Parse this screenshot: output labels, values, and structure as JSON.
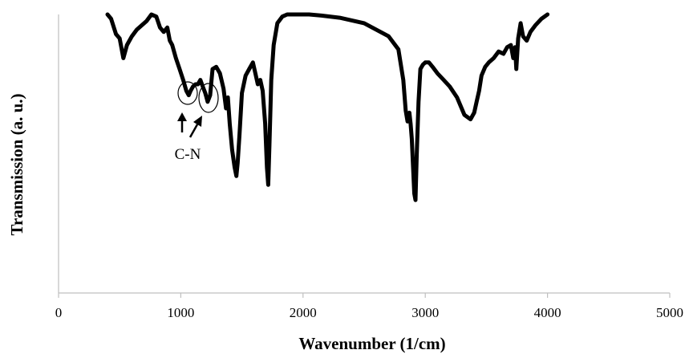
{
  "chart_data": {
    "type": "line",
    "title": "",
    "xlabel": "Wavenumber (1/cm)",
    "ylabel": "Transmission (a. u.)",
    "xlim": [
      0,
      5000
    ],
    "ylim": [
      0,
      100
    ],
    "xticks": [
      "0",
      "1000",
      "2000",
      "3000",
      "4000",
      "5000"
    ],
    "grid": false,
    "legend": "none",
    "line_color": "#000000",
    "series": [
      {
        "x": [
          400,
          430,
          470,
          500,
          530,
          560,
          600,
          640,
          680,
          720,
          760,
          800,
          830,
          860,
          890,
          910,
          930,
          960,
          990,
          1020,
          1045,
          1065,
          1080,
          1100,
          1120,
          1140,
          1160,
          1180,
          1200,
          1220,
          1240,
          1260,
          1290,
          1320,
          1350,
          1370,
          1385,
          1400,
          1420,
          1440,
          1455,
          1465,
          1480,
          1500,
          1530,
          1560,
          1590,
          1610,
          1630,
          1650,
          1670,
          1690,
          1705,
          1715,
          1725,
          1740,
          1760,
          1790,
          1830,
          1870,
          1920,
          1980,
          2050,
          2150,
          2300,
          2500,
          2700,
          2780,
          2820,
          2840,
          2855,
          2870,
          2880,
          2890,
          2900,
          2910,
          2920,
          2930,
          2945,
          2960,
          2980,
          3000,
          3030,
          3060,
          3100,
          3150,
          3200,
          3260,
          3320,
          3370,
          3400,
          3420,
          3440,
          3460,
          3490,
          3520,
          3560,
          3600,
          3640,
          3670,
          3700,
          3720,
          3735,
          3745,
          3760,
          3780,
          3800,
          3830,
          3860,
          3900,
          3950,
          4000
        ],
        "y": [
          100,
          98,
          91,
          89,
          80,
          86,
          90,
          93,
          95,
          97,
          100,
          99,
          94,
          92,
          94,
          88,
          86,
          80,
          75,
          70,
          65,
          63,
          65,
          67,
          68,
          68,
          70,
          67,
          64,
          60,
          63,
          75,
          76,
          73,
          66,
          57,
          62,
          50,
          38,
          30,
          26,
          32,
          45,
          64,
          72,
          75,
          78,
          73,
          68,
          70,
          65,
          50,
          30,
          22,
          40,
          70,
          86,
          96,
          99,
          100,
          100,
          100,
          100,
          99.5,
          98.5,
          96,
          90,
          84,
          70,
          56,
          51,
          55,
          50,
          43,
          30,
          18,
          15,
          35,
          60,
          75,
          77,
          78,
          78,
          76,
          73,
          70,
          67,
          62,
          54,
          52,
          55,
          60,
          65,
          72,
          76,
          78,
          80,
          83,
          82,
          85,
          86,
          80,
          85,
          75,
          89,
          96,
          90,
          88,
          92,
          95,
          98,
          100
        ]
      }
    ],
    "annotations": [
      {
        "text": "C-N"
      }
    ]
  }
}
